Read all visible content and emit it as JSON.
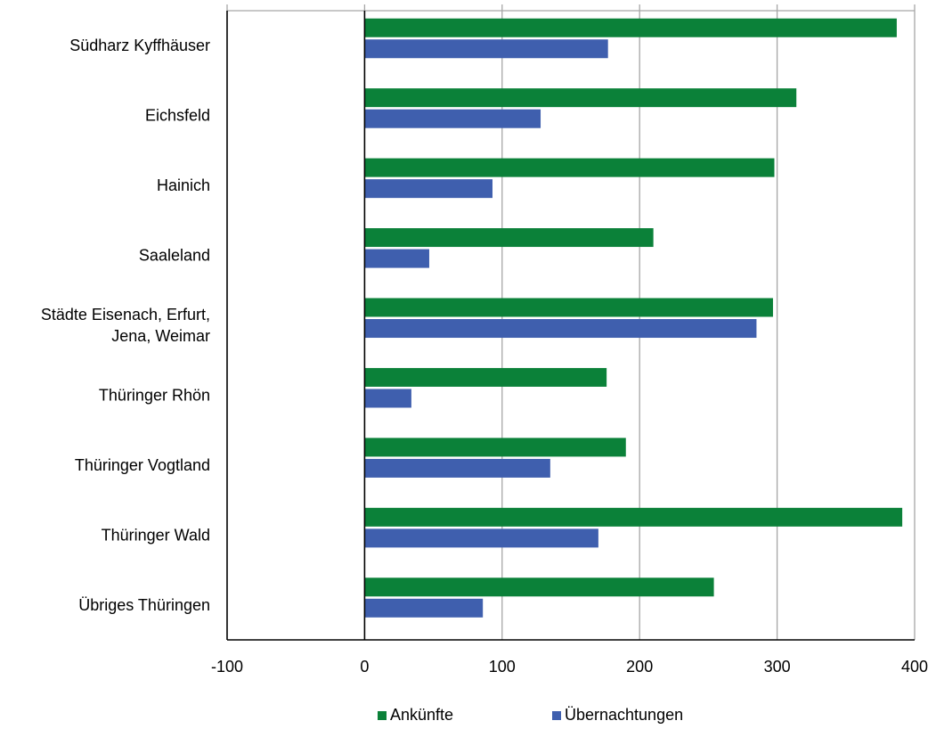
{
  "chart_data": {
    "type": "bar",
    "orientation": "horizontal",
    "categories": [
      "Südharz Kyffhäuser",
      "Eichsfeld",
      "Hainich",
      "Saaleland",
      "Städte Eisenach, Erfurt, Jena, Weimar",
      "Thüringer Rhön",
      "Thüringer Vogtland",
      "Thüringer Wald",
      "Übriges Thüringen"
    ],
    "category_label_lines": [
      [
        "Südharz Kyffhäuser"
      ],
      [
        "Eichsfeld"
      ],
      [
        "Hainich"
      ],
      [
        "Saaleland"
      ],
      [
        "Städte Eisenach, Erfurt,",
        "Jena, Weimar"
      ],
      [
        "Thüringer Rhön"
      ],
      [
        "Thüringer Vogtland"
      ],
      [
        "Thüringer Wald"
      ],
      [
        "Übriges Thüringen"
      ]
    ],
    "series": [
      {
        "name": "Ankünfte",
        "color": "#0b8139",
        "values": [
          387,
          314,
          298,
          210,
          297,
          176,
          190,
          391,
          254
        ]
      },
      {
        "name": "Übernachtungen",
        "color": "#3f5fae",
        "values": [
          177,
          128,
          93,
          47,
          285,
          34,
          135,
          170,
          86
        ]
      }
    ],
    "xlim": [
      -100,
      400
    ],
    "xticks": [
      -100,
      0,
      100,
      200,
      300,
      400
    ],
    "xtick_labels": [
      "-100",
      "0",
      "100",
      "200",
      "300",
      "400"
    ],
    "grid": true,
    "legend_position": "bottom",
    "title": "",
    "xlabel": "",
    "ylabel": ""
  }
}
